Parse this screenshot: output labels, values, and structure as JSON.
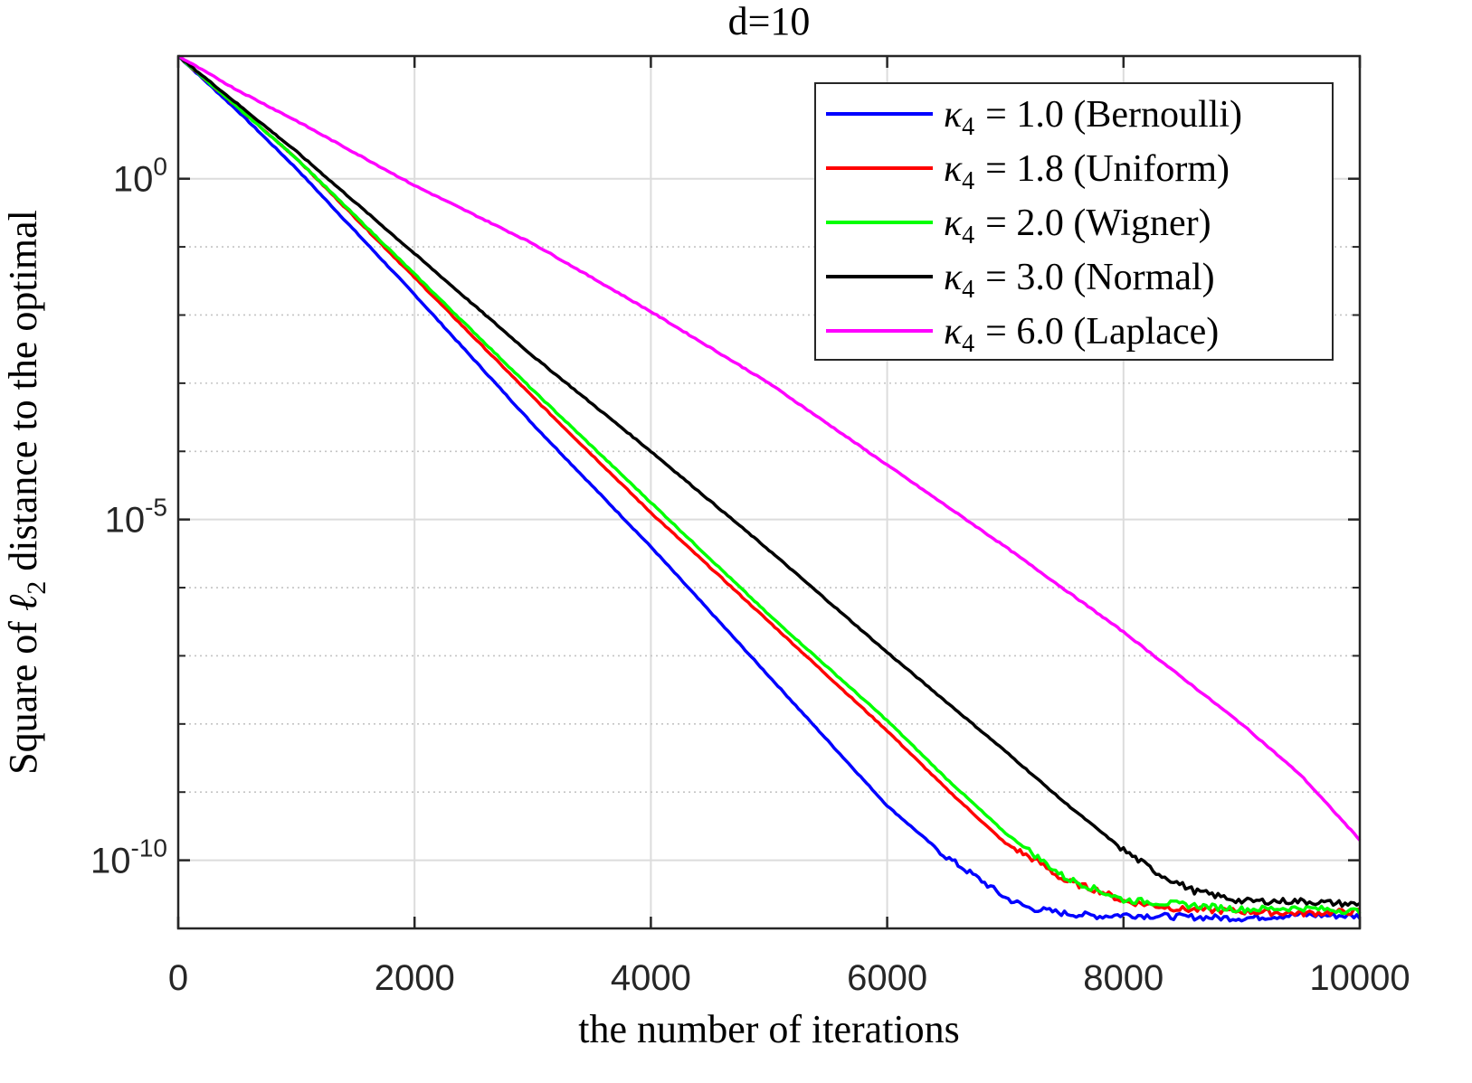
{
  "chart_data": {
    "type": "line",
    "title": "d=10",
    "xlabel": "the number of iterations",
    "ylabel_parts": [
      "Square of ",
      "ℓ",
      "2",
      " distance to the optimal"
    ],
    "y_scale": "log10",
    "xlim": [
      0,
      10000
    ],
    "ylim_log10": [
      -11,
      1.8
    ],
    "x_ticks": [
      0,
      2000,
      4000,
      6000,
      8000,
      10000
    ],
    "x_tick_labels": [
      "0",
      "2000",
      "4000",
      "6000",
      "8000",
      "10000"
    ],
    "y_major_ticks_log10": [
      0,
      -5,
      -10
    ],
    "y_tick_labels": [
      {
        "base": "10",
        "exp": "0"
      },
      {
        "base": "10",
        "exp": "-5"
      },
      {
        "base": "10",
        "exp": "-10"
      }
    ],
    "y_minor_grid_log10": [
      -1,
      -2,
      -3,
      -4,
      -6,
      -7,
      -8,
      -9
    ],
    "grid": true,
    "legend_position": "top-right",
    "series": [
      {
        "name": "κ4 = 1.0 (Bernoulli)",
        "kappa_label": "κ",
        "kappa_sub": "4",
        "legend_text": "= 1.0 (Bernoulli)",
        "color": "#0000ff",
        "x": [
          0,
          500,
          1000,
          2000,
          3000,
          4000,
          5000,
          6000,
          6500,
          6800,
          7000,
          7200,
          7500,
          7800,
          8000,
          8500,
          9000,
          9500,
          10000
        ],
        "log10y": [
          1.8,
          1.0,
          0.15,
          -1.7,
          -3.6,
          -5.4,
          -7.3,
          -9.2,
          -9.95,
          -10.3,
          -10.55,
          -10.7,
          -10.78,
          -10.82,
          -10.8,
          -10.83,
          -10.85,
          -10.8,
          -10.82
        ]
      },
      {
        "name": "κ4 = 1.8 (Uniform)",
        "kappa_label": "κ",
        "kappa_sub": "4",
        "legend_text": "= 1.8 (Uniform)",
        "color": "#ff0000",
        "x": [
          0,
          500,
          1000,
          2000,
          3000,
          4000,
          5000,
          6000,
          6500,
          7000,
          7300,
          7500,
          7800,
          8000,
          8500,
          9000,
          9500,
          10000
        ],
        "log10y": [
          1.8,
          1.05,
          0.3,
          -1.45,
          -3.2,
          -4.9,
          -6.5,
          -8.1,
          -8.95,
          -9.75,
          -10.05,
          -10.3,
          -10.45,
          -10.6,
          -10.72,
          -10.75,
          -10.78,
          -10.75
        ]
      },
      {
        "name": "κ4 = 2.0 (Wigner)",
        "kappa_label": "κ",
        "kappa_sub": "4",
        "legend_text": "= 2.0 (Wigner)",
        "color": "#00ff00",
        "x": [
          0,
          500,
          1000,
          2000,
          3000,
          4000,
          5000,
          6000,
          6500,
          7000,
          7500,
          7800,
          8000,
          8500,
          9000,
          9500,
          10000
        ],
        "log10y": [
          1.8,
          1.05,
          0.3,
          -1.4,
          -3.1,
          -4.75,
          -6.4,
          -7.95,
          -8.8,
          -9.6,
          -10.25,
          -10.45,
          -10.58,
          -10.65,
          -10.72,
          -10.7,
          -10.75
        ]
      },
      {
        "name": "κ4 = 3.0 (Normal)",
        "kappa_label": "κ",
        "kappa_sub": "4",
        "legend_text": "= 3.0 (Normal)",
        "color": "#000000",
        "x": [
          0,
          500,
          1000,
          2000,
          3000,
          4000,
          5000,
          6000,
          7000,
          7500,
          8000,
          8300,
          8600,
          9000,
          9500,
          10000
        ],
        "log10y": [
          1.8,
          1.1,
          0.4,
          -1.1,
          -2.6,
          -4.0,
          -5.45,
          -6.95,
          -8.4,
          -9.15,
          -9.85,
          -10.2,
          -10.45,
          -10.6,
          -10.6,
          -10.65
        ]
      },
      {
        "name": "κ4 = 6.0 (Laplace)",
        "kappa_label": "κ",
        "kappa_sub": "4",
        "legend_text": "= 6.0 (Laplace)",
        "color": "#ff00ff",
        "x": [
          0,
          500,
          1000,
          2000,
          3000,
          4000,
          5000,
          6000,
          7000,
          8000,
          9000,
          9500,
          10000
        ],
        "log10y": [
          1.8,
          1.3,
          0.85,
          -0.1,
          -0.95,
          -1.95,
          -3.0,
          -4.2,
          -5.4,
          -6.65,
          -8.0,
          -8.75,
          -9.7
        ]
      }
    ]
  }
}
